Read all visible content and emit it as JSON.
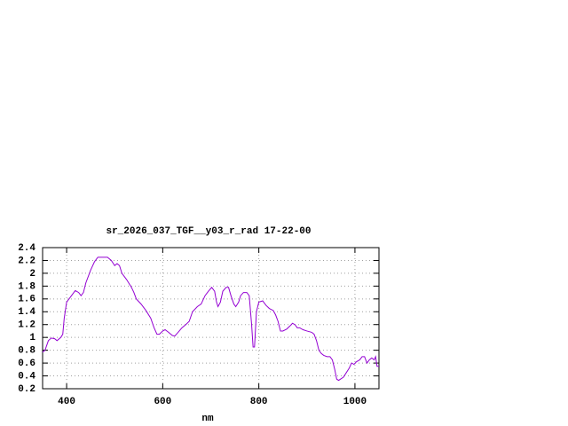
{
  "chart_data": {
    "type": "line",
    "title": "sr_2026_037_TGF__y03_r_rad 17-22-00",
    "x_label": "nm",
    "x": [
      350,
      355,
      362,
      368,
      375,
      380,
      388,
      392,
      395,
      400,
      410,
      418,
      425,
      430,
      435,
      440,
      450,
      458,
      465,
      475,
      485,
      493,
      500,
      505,
      510,
      515,
      525,
      535,
      540,
      545,
      555,
      565,
      575,
      582,
      588,
      593,
      600,
      605,
      612,
      620,
      625,
      632,
      640,
      648,
      655,
      662,
      672,
      680,
      688,
      695,
      702,
      708,
      712,
      715,
      720,
      725,
      732,
      737,
      742,
      748,
      752,
      758,
      762,
      768,
      775,
      780,
      785,
      788,
      791,
      795,
      800,
      808,
      815,
      822,
      830,
      835,
      840,
      845,
      850,
      858,
      865,
      870,
      875,
      880,
      885,
      892,
      900,
      910,
      915,
      920,
      925,
      930,
      935,
      942,
      948,
      953,
      958,
      962,
      966,
      970,
      976,
      982,
      988,
      993,
      998,
      1003,
      1010,
      1015,
      1020,
      1025,
      1030,
      1035,
      1040,
      1043,
      1046,
      1050
    ],
    "series": [
      {
        "color": "#9400d3",
        "values": [
          0.77,
          0.8,
          0.95,
          0.99,
          0.98,
          0.95,
          1.0,
          1.05,
          1.3,
          1.55,
          1.65,
          1.73,
          1.7,
          1.65,
          1.7,
          1.85,
          2.05,
          2.18,
          2.25,
          2.25,
          2.25,
          2.2,
          2.12,
          2.15,
          2.12,
          2.0,
          1.9,
          1.78,
          1.7,
          1.6,
          1.52,
          1.42,
          1.3,
          1.15,
          1.05,
          1.05,
          1.1,
          1.12,
          1.08,
          1.03,
          1.02,
          1.08,
          1.15,
          1.2,
          1.25,
          1.4,
          1.48,
          1.52,
          1.65,
          1.72,
          1.78,
          1.72,
          1.55,
          1.48,
          1.55,
          1.72,
          1.78,
          1.78,
          1.65,
          1.52,
          1.48,
          1.55,
          1.65,
          1.7,
          1.7,
          1.65,
          1.2,
          0.85,
          0.85,
          1.4,
          1.55,
          1.57,
          1.5,
          1.45,
          1.42,
          1.35,
          1.25,
          1.1,
          1.1,
          1.13,
          1.18,
          1.22,
          1.2,
          1.15,
          1.15,
          1.12,
          1.1,
          1.08,
          1.05,
          0.95,
          0.8,
          0.75,
          0.72,
          0.7,
          0.7,
          0.65,
          0.5,
          0.35,
          0.33,
          0.35,
          0.38,
          0.45,
          0.52,
          0.6,
          0.58,
          0.62,
          0.65,
          0.7,
          0.7,
          0.6,
          0.65,
          0.68,
          0.65,
          0.7,
          0.55,
          0.55
        ]
      }
    ],
    "xlim": [
      350,
      1050
    ],
    "xticks": [
      400,
      600,
      800,
      1000
    ],
    "ylim": [
      0.2,
      2.4
    ],
    "yticks": [
      0.2,
      0.4,
      0.6,
      0.8,
      1,
      1.2,
      1.4,
      1.6,
      1.8,
      2,
      2.2,
      2.4
    ],
    "grid": true
  }
}
